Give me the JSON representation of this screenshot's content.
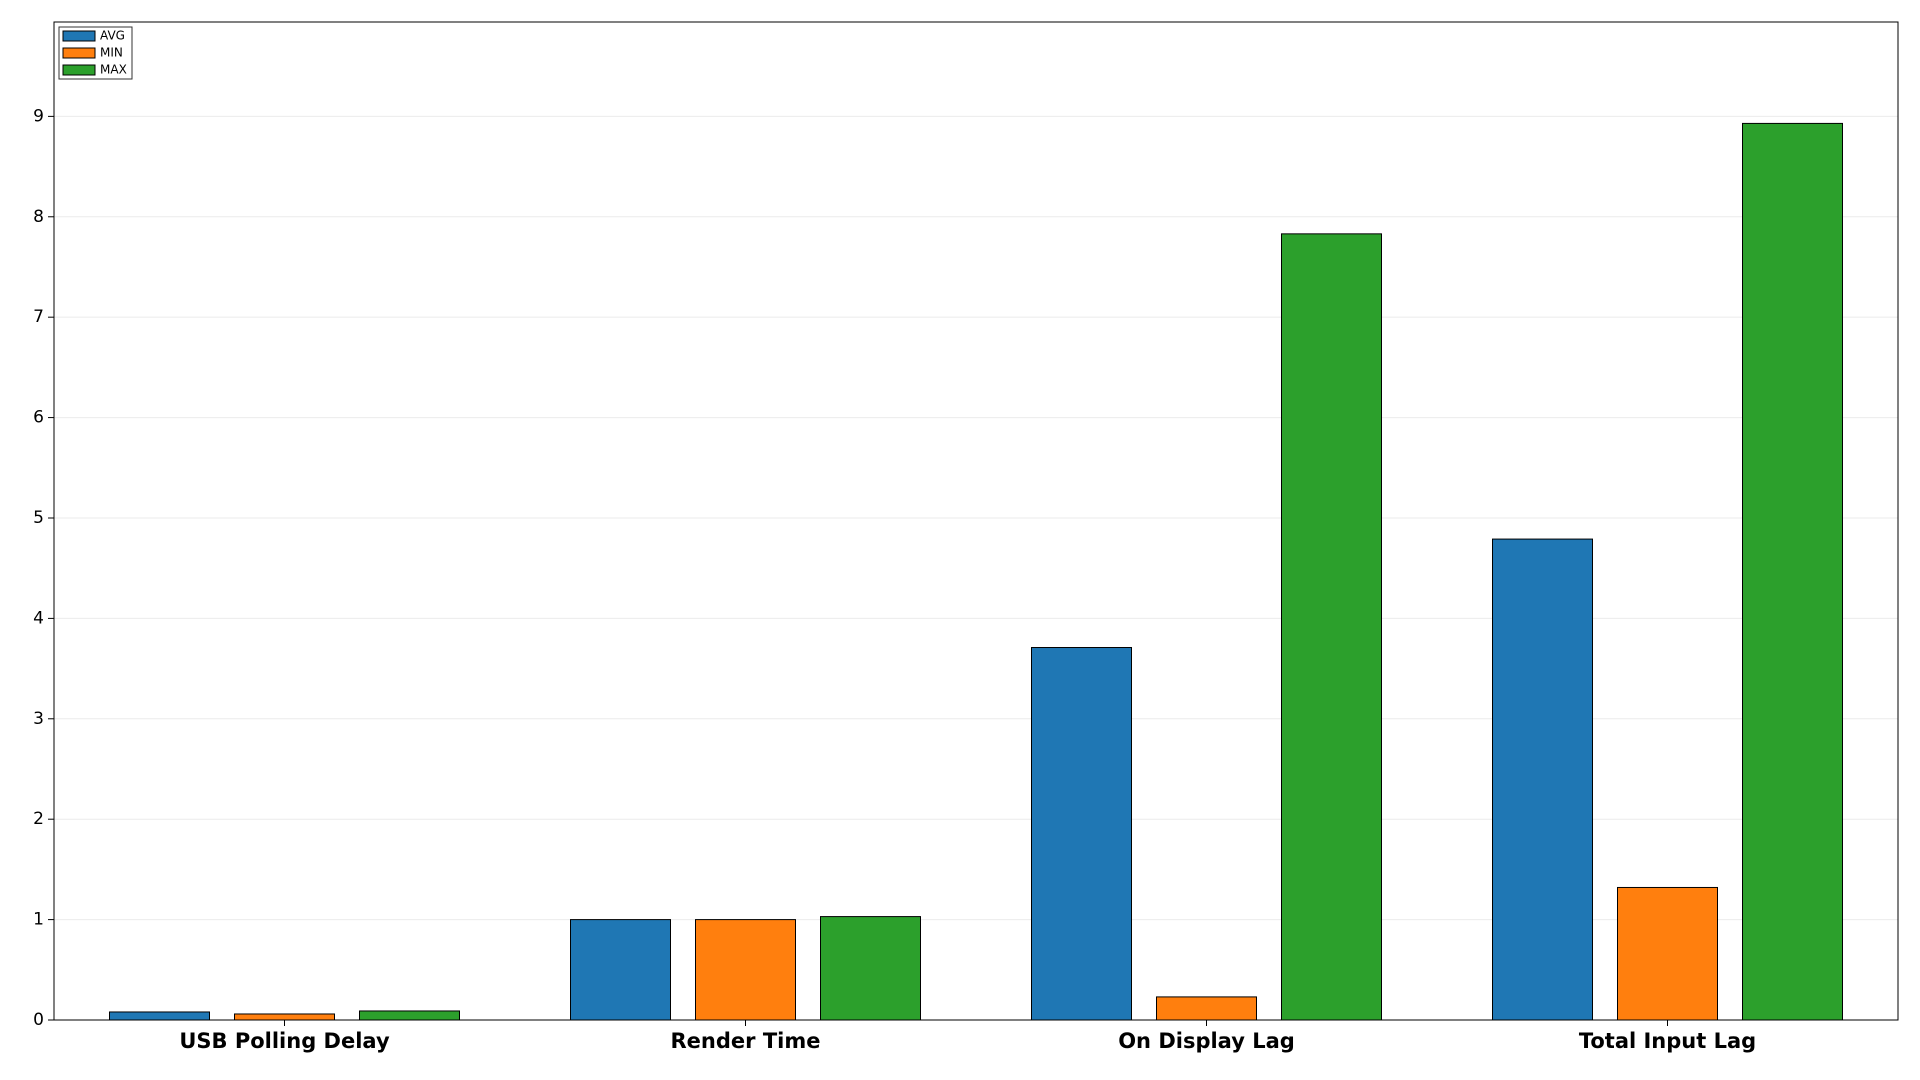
{
  "chart_data": {
    "type": "bar",
    "categories": [
      "USB Polling Delay",
      "Render Time",
      "On Display Lag",
      "Total Input Lag"
    ],
    "series": [
      {
        "name": "AVG",
        "color": "#1f77b4",
        "values": [
          0.08,
          1.0,
          3.71,
          4.79
        ]
      },
      {
        "name": "MIN",
        "color": "#ff7f0e",
        "values": [
          0.06,
          1.0,
          0.23,
          1.32
        ]
      },
      {
        "name": "MAX",
        "color": "#2ca02c",
        "values": [
          0.09,
          1.03,
          7.83,
          8.93
        ]
      }
    ],
    "ylim": [
      0,
      9.94
    ],
    "yticks": [
      0,
      1,
      2,
      3,
      4,
      5,
      6,
      7,
      8,
      9
    ],
    "grid": true,
    "legend": "upper-left"
  }
}
